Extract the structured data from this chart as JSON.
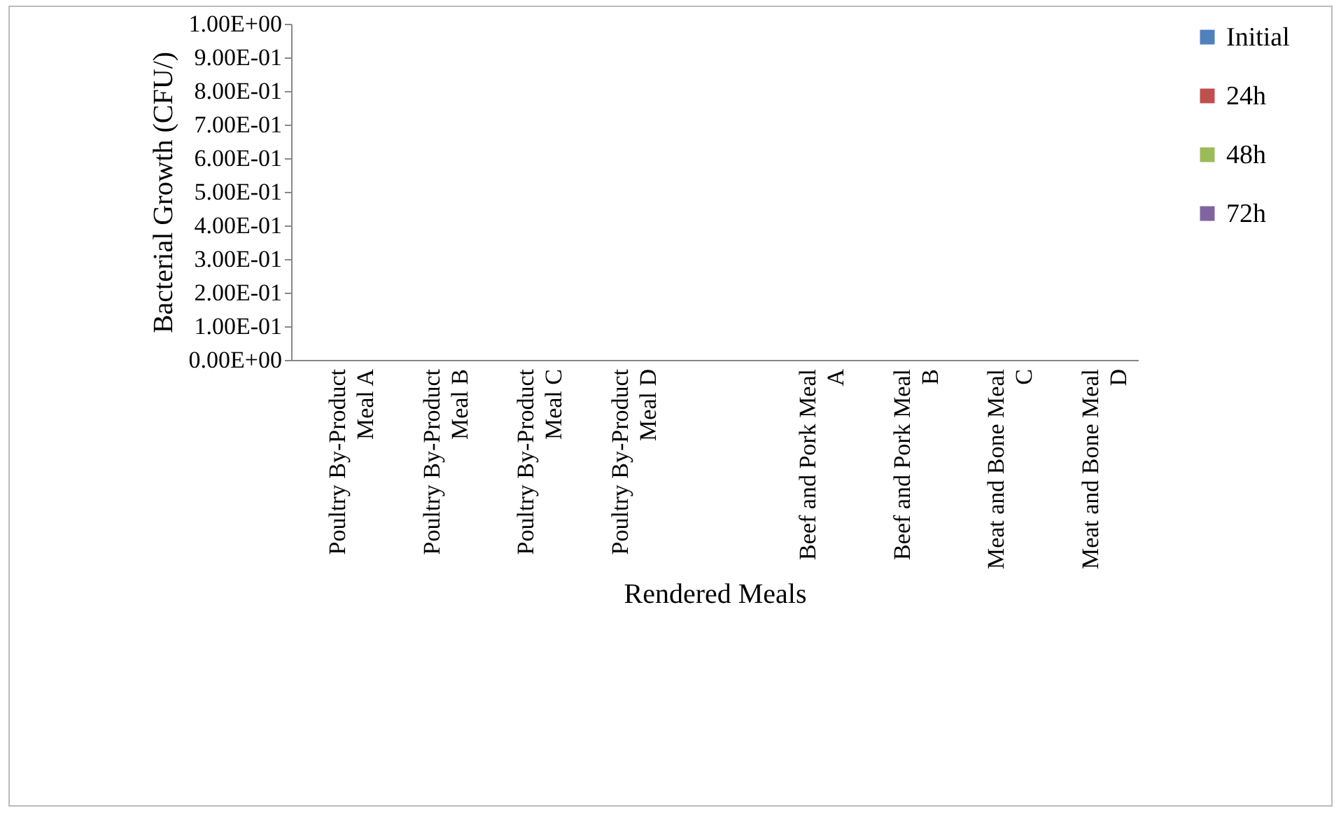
{
  "chart_data": {
    "type": "bar",
    "xlabel": "Rendered Meals",
    "ylabel": "Bacterial Growth (CFU/)",
    "categories": [
      "Poultry By-Product Meal A",
      "Poultry By-Product Meal B",
      "Poultry By-Product Meal C",
      "Poultry By-Product Meal D",
      null,
      "Beef and Pork Meal A",
      "Beef and Pork Meal B",
      "Meat and Bone Meal C",
      "Meat and Bone Meal D"
    ],
    "series": [
      {
        "name": "Initial",
        "color": "#4f81bd",
        "values": [
          0,
          0,
          0,
          0,
          0,
          0,
          0,
          0,
          0
        ]
      },
      {
        "name": "24h",
        "color": "#c0504d",
        "values": [
          0,
          0,
          0,
          0,
          0,
          0,
          0,
          0,
          0
        ]
      },
      {
        "name": "48h",
        "color": "#9bbb59",
        "values": [
          0,
          0,
          0,
          0,
          0,
          0,
          0,
          0,
          0
        ]
      },
      {
        "name": "72h",
        "color": "#8064a2",
        "values": [
          0,
          0,
          0,
          0,
          0,
          0,
          0,
          0,
          0
        ]
      }
    ],
    "ylim": [
      0,
      1
    ],
    "yticks": [
      {
        "value": 0,
        "label": "0.00E+00"
      },
      {
        "value": 0.1,
        "label": "1.00E-01"
      },
      {
        "value": 0.2,
        "label": "2.00E-01"
      },
      {
        "value": 0.3,
        "label": "3.00E-01"
      },
      {
        "value": 0.4,
        "label": "4.00E-01"
      },
      {
        "value": 0.5,
        "label": "5.00E-01"
      },
      {
        "value": 0.6,
        "label": "6.00E-01"
      },
      {
        "value": 0.7,
        "label": "7.00E-01"
      },
      {
        "value": 0.8,
        "label": "8.00E-01"
      },
      {
        "value": 0.9,
        "label": "9.00E-01"
      },
      {
        "value": 1,
        "label": "1.00E+00"
      }
    ],
    "grid": false,
    "legend": "right"
  }
}
